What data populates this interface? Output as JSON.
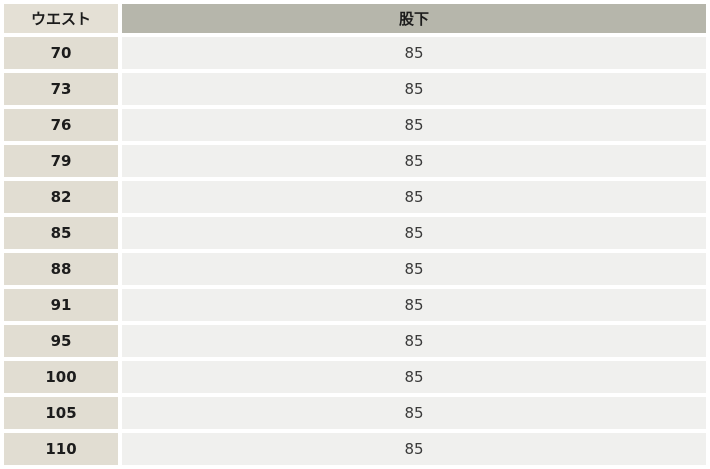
{
  "table": {
    "header": {
      "waist": "ウエスト",
      "inseam": "股下"
    },
    "rows": [
      {
        "waist": "70",
        "inseam": "85"
      },
      {
        "waist": "73",
        "inseam": "85"
      },
      {
        "waist": "76",
        "inseam": "85"
      },
      {
        "waist": "79",
        "inseam": "85"
      },
      {
        "waist": "82",
        "inseam": "85"
      },
      {
        "waist": "85",
        "inseam": "85"
      },
      {
        "waist": "88",
        "inseam": "85"
      },
      {
        "waist": "91",
        "inseam": "85"
      },
      {
        "waist": "95",
        "inseam": "85"
      },
      {
        "waist": "100",
        "inseam": "85"
      },
      {
        "waist": "105",
        "inseam": "85"
      },
      {
        "waist": "110",
        "inseam": "85"
      }
    ]
  },
  "colors": {
    "waist_column_bg": "#e1ddd2",
    "waist_header_bg": "#e4e0d5",
    "inseam_header_bg": "#b6b6ab",
    "inseam_cell_bg": "#f0f0ee",
    "separator": "#ffffff",
    "text": "#1c1c1c"
  },
  "chart_data": {
    "type": "table",
    "columns": [
      "ウエスト",
      "股下"
    ],
    "rows": [
      [
        "70",
        "85"
      ],
      [
        "73",
        "85"
      ],
      [
        "76",
        "85"
      ],
      [
        "79",
        "85"
      ],
      [
        "82",
        "85"
      ],
      [
        "85",
        "85"
      ],
      [
        "88",
        "85"
      ],
      [
        "91",
        "85"
      ],
      [
        "95",
        "85"
      ],
      [
        "100",
        "85"
      ],
      [
        "105",
        "85"
      ],
      [
        "110",
        "85"
      ]
    ]
  }
}
